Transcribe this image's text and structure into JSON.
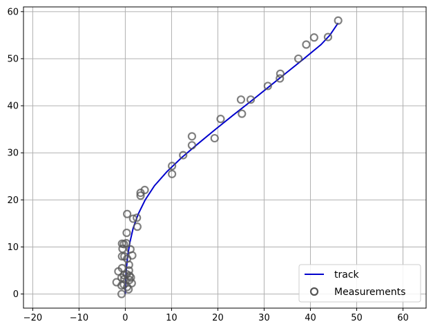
{
  "chart_data": {
    "type": "scatter",
    "xlim": [
      -22,
      65
    ],
    "ylim": [
      -3,
      61
    ],
    "xticks": [
      -20,
      -10,
      0,
      10,
      20,
      30,
      40,
      50,
      60
    ],
    "yticks": [
      0,
      10,
      20,
      30,
      40,
      50,
      60
    ],
    "xtick_labels": [
      "−20",
      "−10",
      "0",
      "10",
      "20",
      "30",
      "40",
      "50",
      "60"
    ],
    "ytick_labels": [
      "0",
      "10",
      "20",
      "30",
      "40",
      "50",
      "60"
    ],
    "grid": true,
    "legend": {
      "position": "lower-right",
      "entries": [
        "track",
        "Measurements"
      ]
    },
    "series": [
      {
        "name": "track",
        "kind": "line",
        "color": "#0000cc",
        "points": [
          [
            0,
            0
          ],
          [
            0.05,
            2
          ],
          [
            0.2,
            5
          ],
          [
            0.5,
            8
          ],
          [
            1.0,
            11
          ],
          [
            1.7,
            14
          ],
          [
            2.8,
            17
          ],
          [
            4.3,
            20
          ],
          [
            6.3,
            23
          ],
          [
            9.0,
            26
          ],
          [
            12.2,
            29
          ],
          [
            15.8,
            32
          ],
          [
            19.5,
            35
          ],
          [
            23.3,
            38
          ],
          [
            27.2,
            41
          ],
          [
            31.0,
            44
          ],
          [
            34.8,
            47
          ],
          [
            38.6,
            50
          ],
          [
            42.3,
            53
          ],
          [
            44.2,
            55
          ],
          [
            46,
            57.6
          ]
        ]
      },
      {
        "name": "Measurements",
        "kind": "scatter",
        "marker": "hollow-circle",
        "color": "#555555",
        "points": [
          [
            46,
            58.1
          ],
          [
            43.8,
            54.6
          ],
          [
            40.8,
            54.5
          ],
          [
            39.1,
            53.0
          ],
          [
            37.4,
            50.0
          ],
          [
            33.5,
            46.8
          ],
          [
            33.4,
            45.8
          ],
          [
            30.8,
            44.2
          ],
          [
            27.1,
            41.3
          ],
          [
            25.0,
            41.3
          ],
          [
            25.2,
            38.3
          ],
          [
            20.6,
            37.2
          ],
          [
            19.3,
            33.1
          ],
          [
            14.4,
            33.5
          ],
          [
            14.4,
            31.6
          ],
          [
            12.5,
            29.5
          ],
          [
            10.1,
            27.2
          ],
          [
            10.1,
            25.5
          ],
          [
            4.2,
            22.1
          ],
          [
            3.3,
            21.5
          ],
          [
            3.3,
            20.9
          ],
          [
            2.5,
            16.2
          ],
          [
            1.7,
            16.0
          ],
          [
            0.4,
            17.0
          ],
          [
            2.6,
            14.3
          ],
          [
            0.3,
            13.0
          ],
          [
            -0.7,
            10.7
          ],
          [
            -0.3,
            10.6
          ],
          [
            0.2,
            10.8
          ],
          [
            1.1,
            9.5
          ],
          [
            -0.6,
            9.6
          ],
          [
            1.5,
            8.2
          ],
          [
            -0.7,
            8.0
          ],
          [
            -0.2,
            8.0
          ],
          [
            0.4,
            7.5
          ],
          [
            0.8,
            6.2
          ],
          [
            -0.7,
            5.5
          ],
          [
            0.8,
            5.0
          ],
          [
            -1.5,
            4.8
          ],
          [
            0.3,
            4.2
          ],
          [
            -0.3,
            4.0
          ],
          [
            0.9,
            3.9
          ],
          [
            0.9,
            3.0
          ],
          [
            -0.2,
            3.2
          ],
          [
            -0.8,
            3.5
          ],
          [
            1.2,
            3.5
          ],
          [
            -1.9,
            2.5
          ],
          [
            1.4,
            2.3
          ],
          [
            -0.8,
            1.8
          ],
          [
            -0.3,
            2.0
          ],
          [
            0.4,
            1.5
          ],
          [
            0.7,
            1.0
          ],
          [
            -0.8,
            0.0
          ]
        ]
      }
    ]
  }
}
